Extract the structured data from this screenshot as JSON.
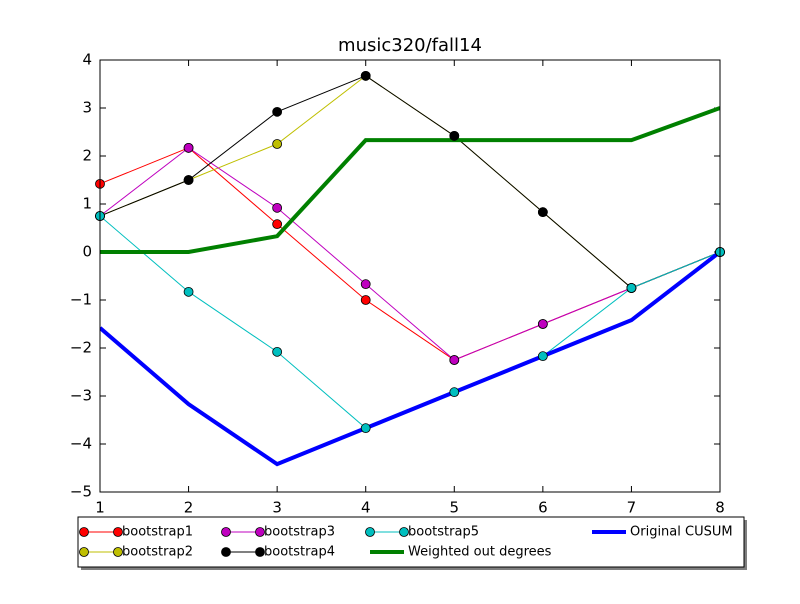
{
  "chart_data": {
    "type": "line",
    "title": "music320/fall14",
    "x": [
      1,
      2,
      3,
      4,
      5,
      6,
      7,
      8
    ],
    "xlim": [
      1,
      8
    ],
    "xticks": [
      1,
      2,
      3,
      4,
      5,
      6,
      7,
      8
    ],
    "ylim": [
      -5,
      4
    ],
    "yticks": [
      {
        "value": -5,
        "label": "−5"
      },
      {
        "value": -4,
        "label": "−4"
      },
      {
        "value": -3,
        "label": "−3"
      },
      {
        "value": -2,
        "label": "−2"
      },
      {
        "value": -1,
        "label": "−1"
      },
      0,
      1,
      2,
      3,
      4
    ],
    "grid": false,
    "legend": "below",
    "legend_columns": 4,
    "series": [
      {
        "name": "bootstrap1",
        "color": "#ff0000",
        "marker": "o",
        "linewidth": 1,
        "values": [
          1.42,
          2.17,
          0.58,
          -1.0,
          -2.25,
          -1.5,
          -0.75,
          0
        ]
      },
      {
        "name": "bootstrap2",
        "color": "#bfbf00",
        "marker": "o",
        "linewidth": 1,
        "values": [
          0.75,
          1.5,
          2.25,
          3.67,
          2.42,
          0.83,
          -0.75,
          0
        ]
      },
      {
        "name": "bootstrap3",
        "color": "#bf00bf",
        "marker": "o",
        "linewidth": 1,
        "values": [
          0.75,
          2.17,
          0.92,
          -0.67,
          -2.25,
          -1.5,
          -0.75,
          0
        ]
      },
      {
        "name": "bootstrap4",
        "color": "#000000",
        "marker": "o",
        "linewidth": 1,
        "values": [
          0.75,
          1.5,
          2.92,
          3.67,
          2.42,
          0.83,
          -0.75,
          0
        ]
      },
      {
        "name": "bootstrap5",
        "color": "#00bfbf",
        "marker": "o",
        "linewidth": 1,
        "values": [
          0.75,
          -0.83,
          -2.08,
          -3.67,
          -2.92,
          -2.17,
          -0.75,
          0
        ]
      },
      {
        "name": "Weighted out degrees",
        "color": "#008000",
        "linewidth": 4,
        "values": [
          0,
          0,
          0.33,
          2.33,
          2.33,
          2.33,
          2.33,
          3.0
        ]
      },
      {
        "name": "Original CUSUM",
        "color": "#0000ff",
        "linewidth": 4,
        "values": [
          -1.58,
          -3.17,
          -4.42,
          -3.67,
          -2.92,
          -2.17,
          -1.42,
          0
        ]
      }
    ]
  }
}
